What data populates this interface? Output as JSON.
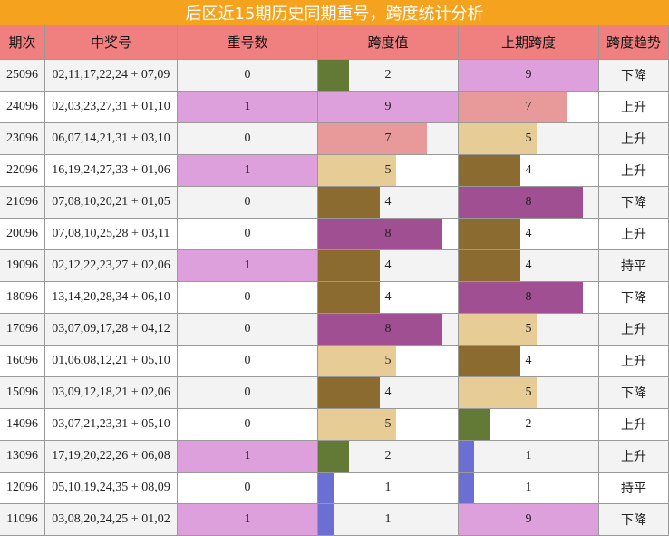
{
  "title": "后区近15期历史同期重号，跨度统计分析",
  "table": {
    "header": [
      "期次",
      "中奖号",
      "重号数",
      "跨度值",
      "上期跨度",
      "跨度趋势"
    ],
    "rows": [
      [
        "25096",
        "02,11,17,22,24 + 07,09",
        0,
        2,
        9,
        "下降"
      ],
      [
        "24096",
        "02,03,23,27,31 + 01,10",
        1,
        9,
        7,
        "上升"
      ],
      [
        "23096",
        "06,07,14,21,31 + 03,10",
        0,
        7,
        5,
        "上升"
      ],
      [
        "22096",
        "16,19,24,27,33 + 01,06",
        1,
        5,
        4,
        "上升"
      ],
      [
        "21096",
        "07,08,10,20,21 + 01,05",
        0,
        4,
        8,
        "下降"
      ],
      [
        "20096",
        "07,08,10,25,28 + 03,11",
        0,
        8,
        4,
        "上升"
      ],
      [
        "19096",
        "02,12,22,23,27 + 02,06",
        1,
        4,
        4,
        "持平"
      ],
      [
        "18096",
        "13,14,20,28,34 + 06,10",
        0,
        4,
        8,
        "下降"
      ],
      [
        "17096",
        "03,07,09,17,28 + 04,12",
        0,
        8,
        5,
        "上升"
      ],
      [
        "16096",
        "01,06,08,12,21 + 05,10",
        0,
        5,
        4,
        "上升"
      ],
      [
        "15096",
        "03,09,12,18,21 + 02,06",
        0,
        4,
        5,
        "下降"
      ],
      [
        "14096",
        "03,07,21,23,31 + 05,10",
        0,
        5,
        2,
        "上升"
      ],
      [
        "13096",
        "17,19,20,22,26 + 06,08",
        1,
        2,
        1,
        "上升"
      ],
      [
        "12096",
        "05,10,19,24,35 + 08,09",
        0,
        1,
        1,
        "持平"
      ],
      [
        "11096",
        "03,08,20,24,25 + 01,02",
        1,
        1,
        9,
        "下降"
      ]
    ]
  },
  "span_colors": {
    "1": "#6b6fd1",
    "2": "#627a36",
    "4": "#8c6b30",
    "5": "#e8cc96",
    "7": "#e89a9a",
    "8": "#a14f93",
    "9": "#dda0dd"
  },
  "repeat_highlight": "#dda0dd"
}
